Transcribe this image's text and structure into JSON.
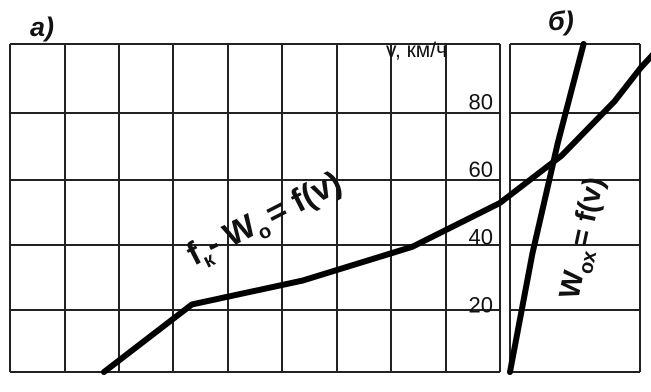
{
  "chart_data": [
    {
      "panel_label": "а)",
      "type": "line",
      "ylabel": "v, км/ч",
      "ylim": [
        0,
        97
      ],
      "y_ticks": [
        {
          "value": 20,
          "label": "20"
        },
        {
          "value": 40,
          "label": "40"
        },
        {
          "value": 60,
          "label": "60"
        },
        {
          "value": 80,
          "label": "80"
        }
      ],
      "grid": true,
      "series": [
        {
          "annotation": {
            "main": "f",
            "sub1": "к",
            "mid": "- W",
            "sub2": "о",
            "end": "= f(v)"
          },
          "points": [
            {
              "x": -9.0,
              "y": 0
            },
            {
              "x": -7.0,
              "y": 20
            },
            {
              "x": -4.5,
              "y": 27
            },
            {
              "x": -2.0,
              "y": 37
            },
            {
              "x": 0.0,
              "y": 50
            },
            {
              "x": 1.4,
              "y": 64
            },
            {
              "x": 2.6,
              "y": 80
            },
            {
              "x": 3.2,
              "y": 90
            },
            {
              "x": 3.7,
              "y": 97
            }
          ]
        }
      ]
    },
    {
      "panel_label": "б)",
      "type": "line",
      "ylim": [
        0,
        97
      ],
      "grid": true,
      "series": [
        {
          "annotation": {
            "main": "W",
            "sub1": "ох",
            "end": "= f(v)"
          },
          "points": [
            {
              "x": 0.0,
              "y": 0
            },
            {
              "x": 0.7,
              "y": 35
            },
            {
              "x": 1.5,
              "y": 68
            },
            {
              "x": 2.3,
              "y": 97
            }
          ]
        }
      ]
    }
  ]
}
